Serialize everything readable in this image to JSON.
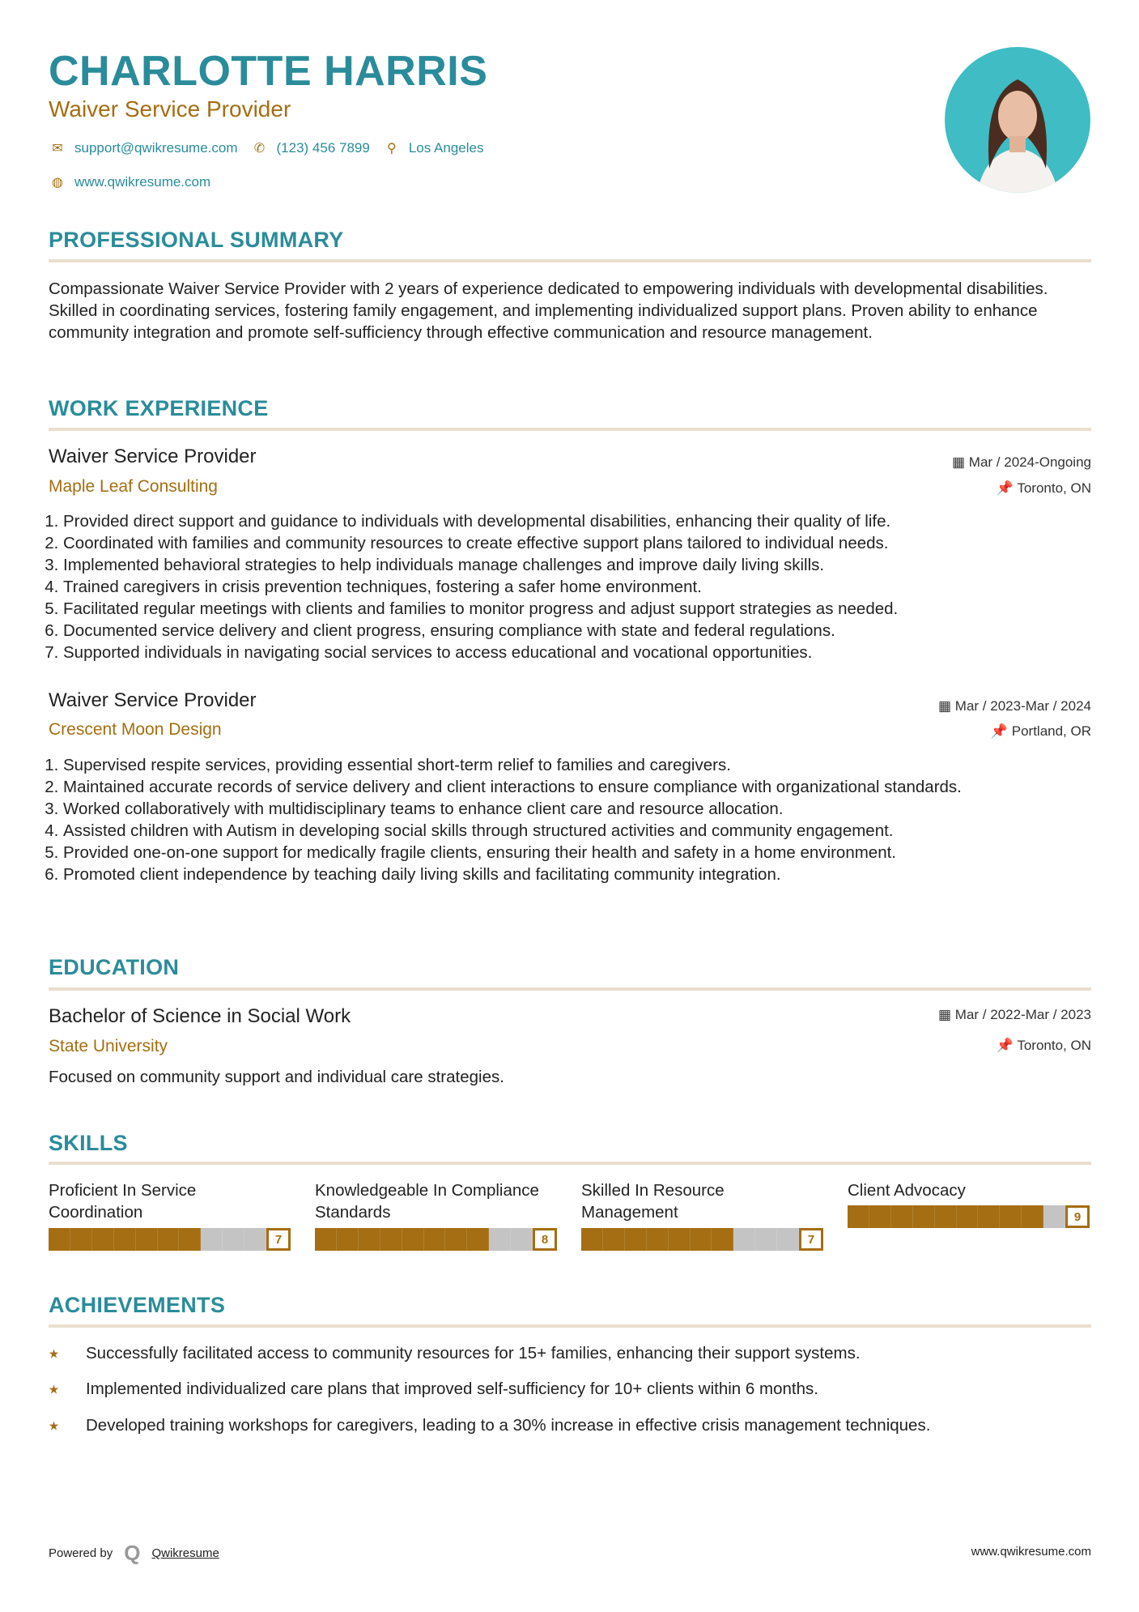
{
  "header": {
    "name": "CHARLOTTE HARRIS",
    "title": "Waiver Service Provider",
    "email": "support@qwikresume.com",
    "phone": "(123) 456 7899",
    "location": "Los Angeles",
    "website": "www.qwikresume.com"
  },
  "colors": {
    "accent": "#2a8c9a",
    "secondary": "#a56e12",
    "bar_empty": "#c4c4c4"
  },
  "summary": {
    "heading": "PROFESSIONAL SUMMARY",
    "text": "Compassionate Waiver Service Provider with 2 years of experience dedicated to empowering individuals with developmental disabilities. Skilled in coordinating services, fostering family engagement, and implementing individualized support plans. Proven ability to enhance community integration and promote self-sufficiency through effective communication and resource management."
  },
  "experience": {
    "heading": "WORK EXPERIENCE",
    "jobs": [
      {
        "title": "Waiver Service Provider",
        "company": "Maple Leaf Consulting",
        "date": "Mar / 2024-Ongoing",
        "location": "Toronto, ON",
        "bullets": [
          "Provided direct support and guidance to individuals with developmental disabilities, enhancing their quality of life.",
          "Coordinated with families and community resources to create effective support plans tailored to individual needs.",
          "Implemented behavioral strategies to help individuals manage challenges and improve daily living skills.",
          "Trained caregivers in crisis prevention techniques, fostering a safer home environment.",
          "Facilitated regular meetings with clients and families to monitor progress and adjust support strategies as needed.",
          "Documented service delivery and client progress, ensuring compliance with state and federal regulations.",
          "Supported individuals in navigating social services to access educational and vocational opportunities."
        ]
      },
      {
        "title": "Waiver Service Provider",
        "company": "Crescent Moon Design",
        "date": "Mar / 2023-Mar / 2024",
        "location": "Portland, OR",
        "bullets": [
          "Supervised respite services, providing essential short-term relief to families and caregivers.",
          "Maintained accurate records of service delivery and client interactions to ensure compliance with organizational standards.",
          "Worked collaboratively with multidisciplinary teams to enhance client care and resource allocation.",
          "Assisted children with Autism in developing social skills through structured activities and community engagement.",
          "Provided one-on-one support for medically fragile clients, ensuring their health and safety in a home environment.",
          "Promoted client independence by teaching daily living skills and facilitating community integration."
        ]
      }
    ]
  },
  "education": {
    "heading": "EDUCATION",
    "degree": "Bachelor of Science in Social Work",
    "school": "State University",
    "date": "Mar / 2022-Mar / 2023",
    "location": "Toronto, ON",
    "description": "Focused on community support and individual care strategies."
  },
  "skills": {
    "heading": "SKILLS",
    "items": [
      {
        "label": "Proficient In Service Coordination",
        "level": 7
      },
      {
        "label": "Knowledgeable In Compliance Standards",
        "level": 8
      },
      {
        "label": "Skilled In Resource Management",
        "level": 7
      },
      {
        "label": "Client Advocacy",
        "level": 9
      }
    ]
  },
  "achievements": {
    "heading": "ACHIEVEMENTS",
    "items": [
      "Successfully facilitated access to community resources for 15+ families, enhancing their support systems.",
      "Implemented individualized care plans that improved self-sufficiency for 10+ clients within 6 months.",
      "Developed training workshops for caregivers, leading to a 30% increase in effective crisis management techniques."
    ]
  },
  "footer": {
    "powered_by": "Powered by",
    "brand": "Qwikresume",
    "website": "www.qwikresume.com"
  }
}
